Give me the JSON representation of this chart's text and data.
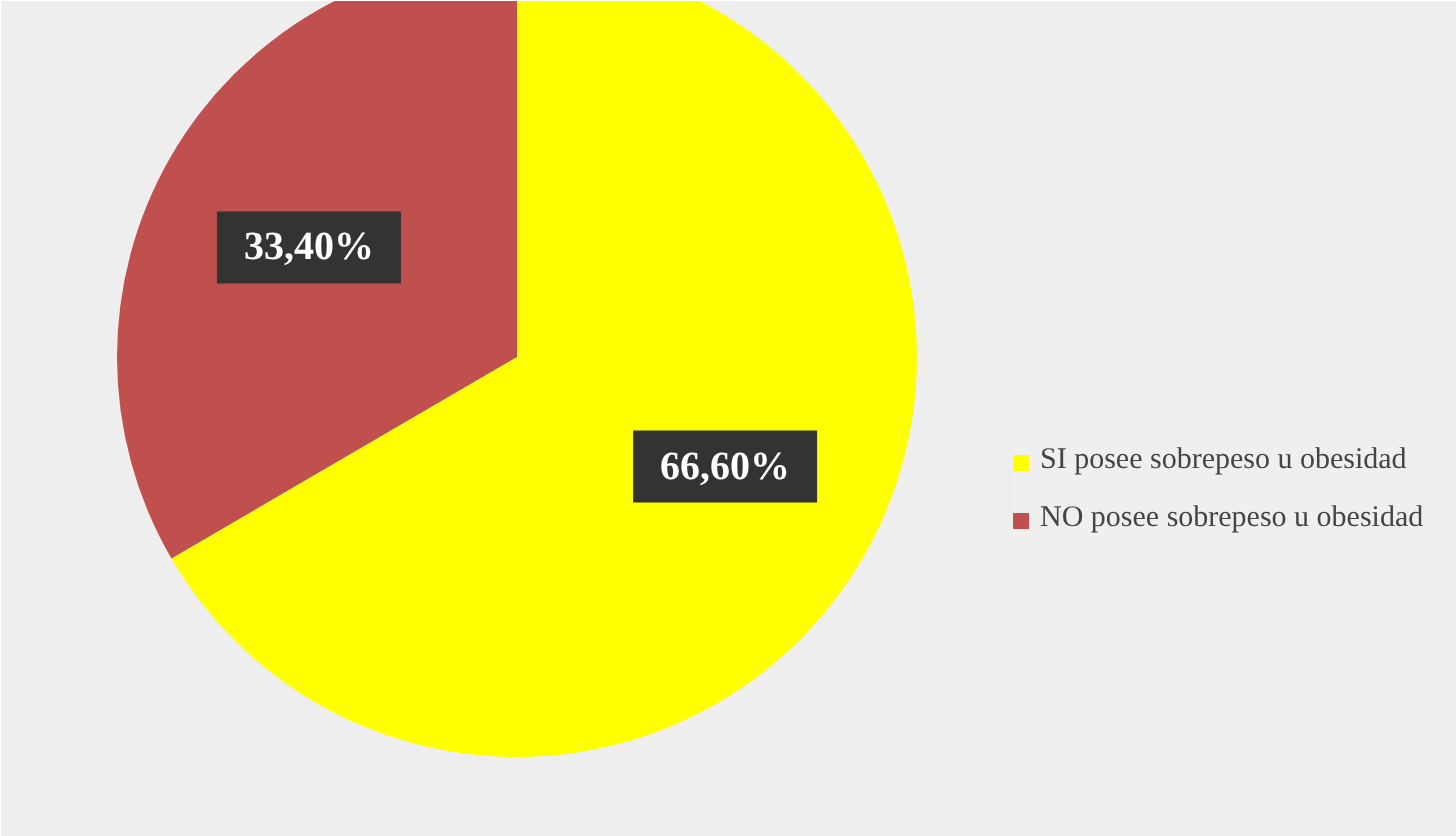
{
  "chart_data": {
    "type": "pie",
    "categories": [
      "SI posee sobrepeso u obesidad",
      "NO posee sobrepeso u obesidad"
    ],
    "values": [
      66.6,
      33.4
    ],
    "colors": [
      "#ffff00",
      "#c0504d"
    ],
    "value_labels": [
      "66,60%",
      "33,40%"
    ],
    "legend": "right"
  }
}
